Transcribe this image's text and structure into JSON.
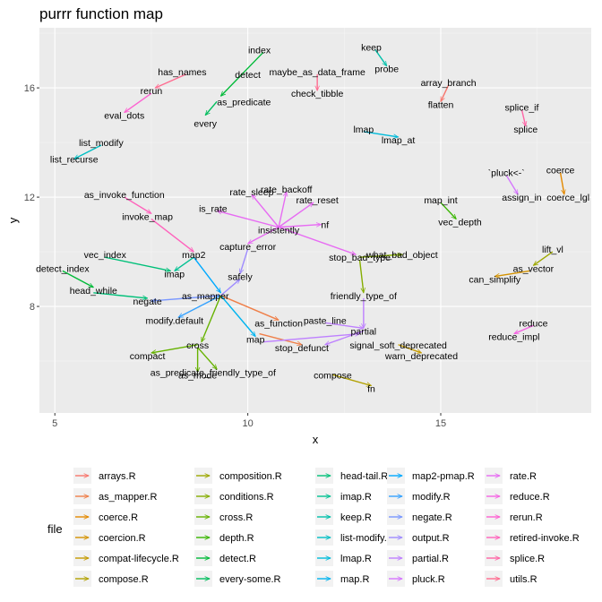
{
  "chart_data": {
    "type": "network",
    "title": "purrr function map",
    "xlabel": "x",
    "ylabel": "y",
    "xlim": [
      4.6,
      18.9
    ],
    "ylim": [
      4.1,
      18.2
    ],
    "x_ticks": [
      5,
      10,
      15
    ],
    "y_ticks": [
      8,
      12,
      16
    ],
    "grid": true,
    "legend_title": "file",
    "legend_position": "bottom",
    "files": [
      {
        "name": "arrays.R",
        "color": "#F8766D"
      },
      {
        "name": "as_mapper.R",
        "color": "#EF7F49"
      },
      {
        "name": "coerce.R",
        "color": "#E38900"
      },
      {
        "name": "coercion.R",
        "color": "#D49200"
      },
      {
        "name": "compat-lifecycle.R",
        "color": "#C49A00"
      },
      {
        "name": "compose.R",
        "color": "#B2A100"
      },
      {
        "name": "composition.R",
        "color": "#9DA700"
      },
      {
        "name": "conditions.R",
        "color": "#85AD00"
      },
      {
        "name": "cross.R",
        "color": "#66B200"
      },
      {
        "name": "depth.R",
        "color": "#39B600"
      },
      {
        "name": "detect.R",
        "color": "#00BA38"
      },
      {
        "name": "every-some.R",
        "color": "#00BD5C"
      },
      {
        "name": "head-tail.R",
        "color": "#00C079"
      },
      {
        "name": "imap.R",
        "color": "#00C192"
      },
      {
        "name": "keep.R",
        "color": "#00C0AA"
      },
      {
        "name": "list-modify.R",
        "color": "#00BFC4"
      },
      {
        "name": "lmap.R",
        "color": "#00BBDA"
      },
      {
        "name": "map.R",
        "color": "#00B4EF"
      },
      {
        "name": "map2-pmap.R",
        "color": "#00A9FF"
      },
      {
        "name": "modify.R",
        "color": "#35A2FF"
      },
      {
        "name": "negate.R",
        "color": "#7997FF"
      },
      {
        "name": "output.R",
        "color": "#9F8CFF"
      },
      {
        "name": "partial.R",
        "color": "#BE80FF"
      },
      {
        "name": "pluck.R",
        "color": "#D575FE"
      },
      {
        "name": "rate.R",
        "color": "#E76BF3"
      },
      {
        "name": "reduce.R",
        "color": "#F564E3"
      },
      {
        "name": "rerun.R",
        "color": "#FD61D1"
      },
      {
        "name": "retired-invoke.R",
        "color": "#FF62BC"
      },
      {
        "name": "splice.R",
        "color": "#FF65A6"
      },
      {
        "name": "utils.R",
        "color": "#FF6C90"
      }
    ],
    "nodes": [
      {
        "label": "index",
        "x": 10.3,
        "y": 17.4
      },
      {
        "label": "keep",
        "x": 13.2,
        "y": 17.5
      },
      {
        "label": "probe",
        "x": 13.6,
        "y": 16.7
      },
      {
        "label": "has_names",
        "x": 8.3,
        "y": 16.6
      },
      {
        "label": "detect",
        "x": 10.0,
        "y": 16.5
      },
      {
        "label": "maybe_as_data_frame",
        "x": 11.8,
        "y": 16.6
      },
      {
        "label": "array_branch",
        "x": 15.2,
        "y": 16.2
      },
      {
        "label": "rerun",
        "x": 7.5,
        "y": 15.9
      },
      {
        "label": "check_tibble",
        "x": 11.8,
        "y": 15.8
      },
      {
        "label": "as_predicate",
        "x": 9.9,
        "y": 15.5
      },
      {
        "label": "flatten",
        "x": 15.0,
        "y": 15.4
      },
      {
        "label": "eval_dots",
        "x": 6.8,
        "y": 15.0
      },
      {
        "label": "splice_if",
        "x": 17.1,
        "y": 15.3
      },
      {
        "label": "every",
        "x": 8.9,
        "y": 14.7
      },
      {
        "label": "lmap",
        "x": 13.0,
        "y": 14.5
      },
      {
        "label": "splice",
        "x": 17.2,
        "y": 14.5
      },
      {
        "label": "lmap_at",
        "x": 13.9,
        "y": 14.1
      },
      {
        "label": "list_modify",
        "x": 6.2,
        "y": 14.0
      },
      {
        "label": "list_recurse",
        "x": 5.5,
        "y": 13.4
      },
      {
        "label": "`pluck<-`",
        "x": 16.7,
        "y": 12.9
      },
      {
        "label": "coerce",
        "x": 18.1,
        "y": 13.0
      },
      {
        "label": "rate_backoff",
        "x": 11.0,
        "y": 12.3
      },
      {
        "label": "rate_sleep",
        "x": 10.1,
        "y": 12.2
      },
      {
        "label": "as_invoke_function",
        "x": 6.8,
        "y": 12.1
      },
      {
        "label": "assign_in",
        "x": 17.1,
        "y": 12.0
      },
      {
        "label": "coerce_lgl",
        "x": 18.3,
        "y": 12.0
      },
      {
        "label": "rate_reset",
        "x": 11.8,
        "y": 11.9
      },
      {
        "label": "map_int",
        "x": 15.0,
        "y": 11.9
      },
      {
        "label": "is_rate",
        "x": 9.1,
        "y": 11.6
      },
      {
        "label": "invoke_map",
        "x": 7.4,
        "y": 11.3
      },
      {
        "label": "vec_depth",
        "x": 15.5,
        "y": 11.1
      },
      {
        "label": "nf",
        "x": 12.0,
        "y": 11.0
      },
      {
        "label": "insistently",
        "x": 10.8,
        "y": 10.8
      },
      {
        "label": "capture_error",
        "x": 10.0,
        "y": 10.2
      },
      {
        "label": "lift_vl",
        "x": 17.9,
        "y": 10.1
      },
      {
        "label": "map2",
        "x": 8.6,
        "y": 9.9
      },
      {
        "label": "vec_index",
        "x": 6.3,
        "y": 9.9
      },
      {
        "label": "stop_bad_type",
        "x": 12.9,
        "y": 9.8
      },
      {
        "label": "what_bad_object",
        "x": 14.0,
        "y": 9.9
      },
      {
        "label": "detect_index",
        "x": 5.2,
        "y": 9.4
      },
      {
        "label": "imap",
        "x": 8.1,
        "y": 9.2
      },
      {
        "label": "safely",
        "x": 9.8,
        "y": 9.1
      },
      {
        "label": "as_vector",
        "x": 17.4,
        "y": 9.4
      },
      {
        "label": "can_simplify",
        "x": 16.4,
        "y": 9.0
      },
      {
        "label": "head_while",
        "x": 6.0,
        "y": 8.6
      },
      {
        "label": "as_mapper",
        "x": 8.9,
        "y": 8.4
      },
      {
        "label": "friendly_type_of",
        "x": 13.0,
        "y": 8.4
      },
      {
        "label": "negate",
        "x": 7.4,
        "y": 8.2
      },
      {
        "label": "modify.default",
        "x": 8.1,
        "y": 7.5
      },
      {
        "label": "paste_line",
        "x": 12.0,
        "y": 7.5
      },
      {
        "label": "as_function",
        "x": 10.8,
        "y": 7.4
      },
      {
        "label": "reduce",
        "x": 17.4,
        "y": 7.4
      },
      {
        "label": "partial",
        "x": 13.0,
        "y": 7.1
      },
      {
        "label": "reduce_impl",
        "x": 16.9,
        "y": 6.9
      },
      {
        "label": "map",
        "x": 10.2,
        "y": 6.8
      },
      {
        "label": "signal_soft_deprecated",
        "x": 13.9,
        "y": 6.6
      },
      {
        "label": "stop_defunct",
        "x": 11.4,
        "y": 6.5
      },
      {
        "label": "cross",
        "x": 8.7,
        "y": 6.6
      },
      {
        "label": "compact",
        "x": 7.4,
        "y": 6.2
      },
      {
        "label": "warn_deprecated",
        "x": 14.5,
        "y": 6.2
      },
      {
        "label": "as_predicate_friendly_type_of",
        "x": 9.1,
        "y": 5.6
      },
      {
        "label": "as_mode",
        "x": 8.7,
        "y": 5.5
      },
      {
        "label": "compose",
        "x": 12.2,
        "y": 5.5
      },
      {
        "label": "fn",
        "x": 13.2,
        "y": 5.0
      }
    ],
    "edges": [
      {
        "from": [
          10.4,
          17.3
        ],
        "to": [
          9.3,
          15.7
        ],
        "file": "detect.R"
      },
      {
        "from": [
          9.2,
          15.5
        ],
        "to": [
          8.9,
          15.0
        ],
        "file": "every-some.R"
      },
      {
        "from": [
          13.3,
          17.4
        ],
        "to": [
          13.6,
          16.8
        ],
        "file": "keep.R"
      },
      {
        "from": [
          8.4,
          16.5
        ],
        "to": [
          7.6,
          16.0
        ],
        "file": "utils.R"
      },
      {
        "from": [
          7.5,
          15.8
        ],
        "to": [
          6.8,
          15.1
        ],
        "file": "rerun.R"
      },
      {
        "from": [
          11.8,
          16.5
        ],
        "to": [
          11.8,
          15.9
        ],
        "file": "utils.R"
      },
      {
        "from": [
          15.2,
          16.1
        ],
        "to": [
          15.0,
          15.5
        ],
        "file": "arrays.R"
      },
      {
        "from": [
          17.1,
          15.2
        ],
        "to": [
          17.2,
          14.6
        ],
        "file": "splice.R"
      },
      {
        "from": [
          13.0,
          14.4
        ],
        "to": [
          13.9,
          14.2
        ],
        "file": "lmap.R"
      },
      {
        "from": [
          6.2,
          13.9
        ],
        "to": [
          5.5,
          13.4
        ],
        "file": "list-modify.R"
      },
      {
        "from": [
          16.7,
          12.8
        ],
        "to": [
          17.0,
          12.1
        ],
        "file": "pluck.R"
      },
      {
        "from": [
          18.1,
          12.9
        ],
        "to": [
          18.2,
          12.1
        ],
        "file": "coerce.R"
      },
      {
        "from": [
          15.0,
          11.8
        ],
        "to": [
          15.4,
          11.2
        ],
        "file": "depth.R"
      },
      {
        "from": [
          6.8,
          12.0
        ],
        "to": [
          7.5,
          11.4
        ],
        "file": "retired-invoke.R"
      },
      {
        "from": [
          7.5,
          11.2
        ],
        "to": [
          8.6,
          10.0
        ],
        "file": "retired-invoke.R"
      },
      {
        "from": [
          10.8,
          10.9
        ],
        "to": [
          10.1,
          12.1
        ],
        "file": "rate.R"
      },
      {
        "from": [
          10.8,
          10.9
        ],
        "to": [
          11.0,
          12.2
        ],
        "file": "rate.R"
      },
      {
        "from": [
          10.8,
          10.9
        ],
        "to": [
          11.7,
          11.8
        ],
        "file": "rate.R"
      },
      {
        "from": [
          10.8,
          10.9
        ],
        "to": [
          9.2,
          11.5
        ],
        "file": "rate.R"
      },
      {
        "from": [
          10.8,
          10.9
        ],
        "to": [
          11.9,
          11.0
        ],
        "file": "rate.R"
      },
      {
        "from": [
          10.8,
          10.9
        ],
        "to": [
          10.0,
          10.3
        ],
        "file": "rate.R"
      },
      {
        "from": [
          10.8,
          10.9
        ],
        "to": [
          12.8,
          9.9
        ],
        "file": "rate.R"
      },
      {
        "from": [
          10.0,
          10.1
        ],
        "to": [
          9.8,
          9.2
        ],
        "file": "output.R"
      },
      {
        "from": [
          12.9,
          9.8
        ],
        "to": [
          14.0,
          9.9
        ],
        "file": "conditions.R"
      },
      {
        "from": [
          12.9,
          9.7
        ],
        "to": [
          13.0,
          8.5
        ],
        "file": "conditions.R"
      },
      {
        "from": [
          17.9,
          10.0
        ],
        "to": [
          17.4,
          9.5
        ],
        "file": "composition.R"
      },
      {
        "from": [
          17.3,
          9.3
        ],
        "to": [
          16.4,
          9.1
        ],
        "file": "coercion.R"
      },
      {
        "from": [
          6.3,
          9.8
        ],
        "to": [
          8.0,
          9.3
        ],
        "file": "head-tail.R"
      },
      {
        "from": [
          5.2,
          9.3
        ],
        "to": [
          6.0,
          8.7
        ],
        "file": "detect.R"
      },
      {
        "from": [
          6.0,
          8.5
        ],
        "to": [
          7.4,
          8.3
        ],
        "file": "head-tail.R"
      },
      {
        "from": [
          8.6,
          9.8
        ],
        "to": [
          8.1,
          9.3
        ],
        "file": "imap.R"
      },
      {
        "from": [
          8.6,
          9.8
        ],
        "to": [
          9.3,
          8.5
        ],
        "file": "map2-pmap.R"
      },
      {
        "from": [
          9.3,
          8.4
        ],
        "to": [
          7.5,
          8.2
        ],
        "file": "negate.R"
      },
      {
        "from": [
          9.3,
          8.4
        ],
        "to": [
          8.2,
          7.6
        ],
        "file": "modify.R"
      },
      {
        "from": [
          9.3,
          8.4
        ],
        "to": [
          10.8,
          7.5
        ],
        "file": "as_mapper.R"
      },
      {
        "from": [
          9.3,
          8.4
        ],
        "to": [
          10.2,
          6.9
        ],
        "file": "map.R"
      },
      {
        "from": [
          9.3,
          8.4
        ],
        "to": [
          8.8,
          6.7
        ],
        "file": "cross.R"
      },
      {
        "from": [
          9.3,
          8.4
        ],
        "to": [
          9.8,
          9.0
        ],
        "file": "output.R"
      },
      {
        "from": [
          8.7,
          6.6
        ],
        "to": [
          7.5,
          6.3
        ],
        "file": "cross.R"
      },
      {
        "from": [
          8.7,
          6.5
        ],
        "to": [
          8.7,
          5.6
        ],
        "file": "cross.R"
      },
      {
        "from": [
          8.7,
          6.5
        ],
        "to": [
          9.2,
          5.7
        ],
        "file": "cross.R"
      },
      {
        "from": [
          10.3,
          7.0
        ],
        "to": [
          11.4,
          6.6
        ],
        "file": "as_mapper.R"
      },
      {
        "from": [
          12.0,
          7.4
        ],
        "to": [
          13.0,
          7.2
        ],
        "file": "partial.R"
      },
      {
        "from": [
          10.4,
          6.7
        ],
        "to": [
          12.9,
          7.0
        ],
        "file": "partial.R"
      },
      {
        "from": [
          13.0,
          7.1
        ],
        "to": [
          12.0,
          6.6
        ],
        "file": "partial.R"
      },
      {
        "from": [
          13.0,
          8.3
        ],
        "to": [
          13.0,
          7.2
        ],
        "file": "partial.R"
      },
      {
        "from": [
          13.9,
          6.6
        ],
        "to": [
          14.5,
          6.3
        ],
        "file": "compat-lifecycle.R"
      },
      {
        "from": [
          12.2,
          5.5
        ],
        "to": [
          13.2,
          5.1
        ],
        "file": "compose.R"
      },
      {
        "from": [
          17.4,
          7.3
        ],
        "to": [
          16.9,
          7.0
        ],
        "file": "reduce.R"
      }
    ]
  }
}
